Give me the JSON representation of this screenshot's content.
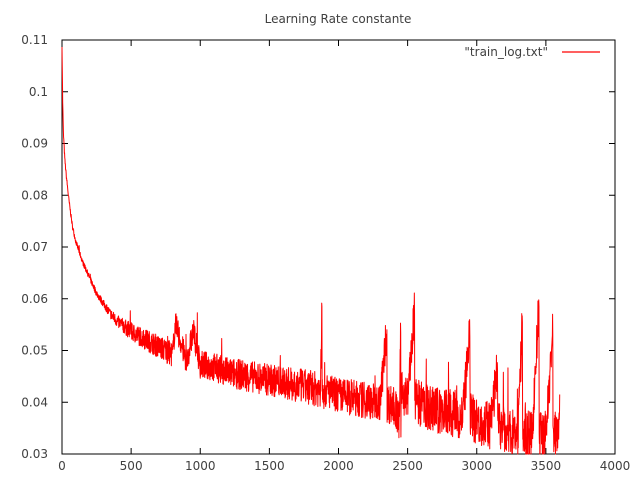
{
  "chart_data": {
    "type": "line",
    "title": "Learning Rate constante",
    "xlabel": "",
    "ylabel": "",
    "xlim": [
      0,
      4000
    ],
    "ylim": [
      0.03,
      0.11
    ],
    "xticks": [
      0,
      500,
      1000,
      1500,
      2000,
      2500,
      3000,
      3500,
      4000
    ],
    "yticks": [
      0.03,
      0.04,
      0.05,
      0.06,
      0.07,
      0.08,
      0.09,
      0.1,
      0.11
    ],
    "xtick_labels": [
      "0",
      "500",
      "1000",
      "1500",
      "2000",
      "2500",
      "3000",
      "3500",
      "4000"
    ],
    "ytick_labels": [
      "0.03",
      "0.04",
      "0.05",
      "0.06",
      "0.07",
      "0.08",
      "0.09",
      "0.1",
      "0.11"
    ],
    "grid": false,
    "legend": {
      "position": "top-right"
    },
    "series": [
      {
        "name": "\"train_log.txt\"",
        "color": "#ff0000",
        "x": [
          0,
          5,
          10,
          20,
          30,
          50,
          75,
          100,
          150,
          200,
          250,
          300,
          350,
          400,
          450,
          500,
          600,
          700,
          800,
          820,
          900,
          950,
          1000,
          1100,
          1200,
          1300,
          1400,
          1500,
          1600,
          1700,
          1800,
          1870,
          1880,
          1890,
          1900,
          2000,
          2100,
          2200,
          2300,
          2350,
          2400,
          2440,
          2450,
          2460,
          2500,
          2550,
          2560,
          2600,
          2650,
          2700,
          2800,
          2900,
          2950,
          3000,
          3050,
          3100,
          3150,
          3200,
          3250,
          3300,
          3330,
          3350,
          3400,
          3450,
          3470,
          3500,
          3550,
          3590,
          3600
        ],
        "y": [
          0.109,
          0.098,
          0.092,
          0.087,
          0.084,
          0.079,
          0.074,
          0.071,
          0.067,
          0.064,
          0.061,
          0.059,
          0.057,
          0.0555,
          0.0545,
          0.0535,
          0.052,
          0.0505,
          0.049,
          0.055,
          0.0475,
          0.0535,
          0.047,
          0.0465,
          0.0455,
          0.045,
          0.0445,
          0.044,
          0.0435,
          0.043,
          0.0425,
          0.042,
          0.0585,
          0.041,
          0.042,
          0.041,
          0.0405,
          0.04,
          0.0395,
          0.054,
          0.039,
          0.036,
          0.0535,
          0.0415,
          0.0405,
          0.057,
          0.04,
          0.039,
          0.0385,
          0.038,
          0.0375,
          0.037,
          0.0525,
          0.036,
          0.0355,
          0.035,
          0.0465,
          0.0345,
          0.034,
          0.0335,
          0.0555,
          0.0335,
          0.033,
          0.0585,
          0.0335,
          0.0335,
          0.053,
          0.034,
          0.0415
        ],
        "noise_amplitude": [
          0.0005,
          0.0008,
          0.0008,
          0.0006,
          0.0006,
          0.0006,
          0.0006,
          0.0006,
          0.0006,
          0.0007,
          0.0008,
          0.0009,
          0.0012,
          0.0015,
          0.0018,
          0.0022,
          0.0025,
          0.0028,
          0.003,
          0.003,
          0.0032,
          0.0033,
          0.0034,
          0.0035,
          0.0036,
          0.0037,
          0.0038,
          0.0039,
          0.004,
          0.0041,
          0.0042,
          0.0042,
          0.0042,
          0.0042,
          0.0042,
          0.0043,
          0.0044,
          0.0045,
          0.0046,
          0.0048,
          0.005,
          0.005,
          0.005,
          0.005,
          0.0052,
          0.0054,
          0.0054,
          0.0055,
          0.0056,
          0.0057,
          0.0058,
          0.0058,
          0.0058,
          0.0058,
          0.0058,
          0.0058,
          0.0058,
          0.0058,
          0.0058,
          0.0058,
          0.0058,
          0.0058,
          0.0058,
          0.0058,
          0.0058,
          0.0058,
          0.0058,
          0.0058,
          0.0058
        ]
      }
    ]
  }
}
